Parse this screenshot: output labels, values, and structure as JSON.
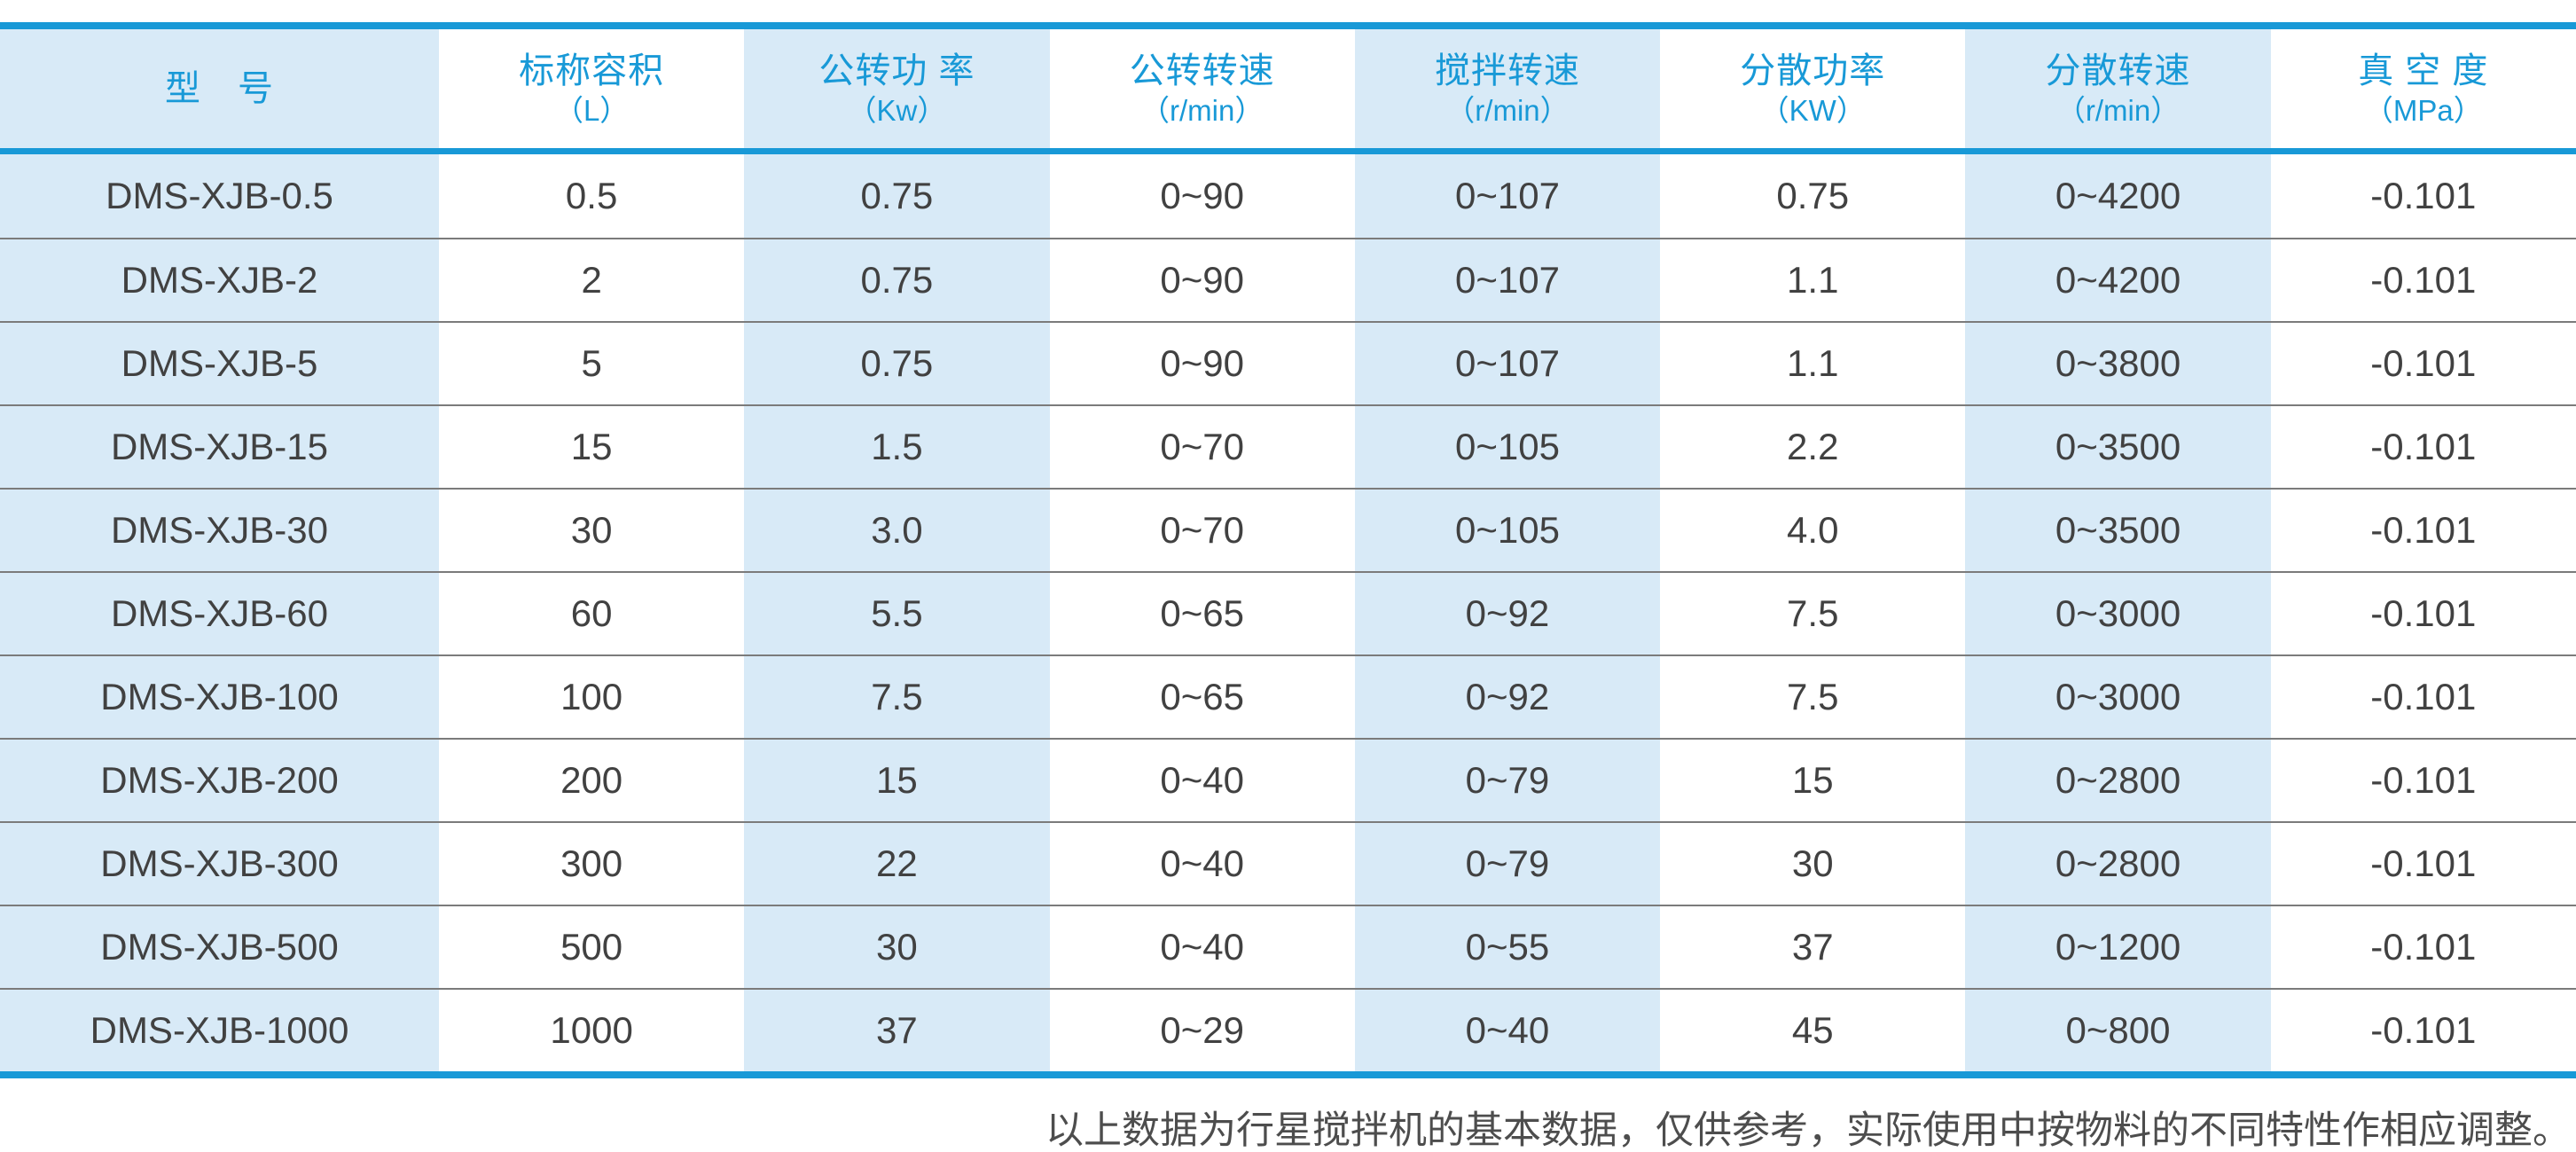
{
  "colors": {
    "accent_blue": "#1899d7",
    "light_blue_cell": "#d8eaf7",
    "body_text": "#414141",
    "row_separator": "#7b7b7b"
  },
  "table": {
    "headers": [
      {
        "title": "型　号",
        "unit": ""
      },
      {
        "title": "标称容积",
        "unit": "（L）"
      },
      {
        "title": "公转功 率",
        "unit": "（Kw）"
      },
      {
        "title": "公转转速",
        "unit": "（r/min）"
      },
      {
        "title": "搅拌转速",
        "unit": "（r/min）"
      },
      {
        "title": "分散功率",
        "unit": "（KW）"
      },
      {
        "title": "分散转速",
        "unit": "（r/min）"
      },
      {
        "title": "真 空 度",
        "unit": "（MPa）"
      }
    ],
    "rows": [
      [
        "DMS-XJB-0.5",
        "0.5",
        "0.75",
        "0~90",
        "0~107",
        "0.75",
        "0~4200",
        "-0.101"
      ],
      [
        "DMS-XJB-2",
        "2",
        "0.75",
        "0~90",
        "0~107",
        "1.1",
        "0~4200",
        "-0.101"
      ],
      [
        "DMS-XJB-5",
        "5",
        "0.75",
        "0~90",
        "0~107",
        "1.1",
        "0~3800",
        "-0.101"
      ],
      [
        "DMS-XJB-15",
        "15",
        "1.5",
        "0~70",
        "0~105",
        "2.2",
        "0~3500",
        "-0.101"
      ],
      [
        "DMS-XJB-30",
        "30",
        "3.0",
        "0~70",
        "0~105",
        "4.0",
        "0~3500",
        "-0.101"
      ],
      [
        "DMS-XJB-60",
        "60",
        "5.5",
        "0~65",
        "0~92",
        "7.5",
        "0~3000",
        "-0.101"
      ],
      [
        "DMS-XJB-100",
        "100",
        "7.5",
        "0~65",
        "0~92",
        "7.5",
        "0~3000",
        "-0.101"
      ],
      [
        "DMS-XJB-200",
        "200",
        "15",
        "0~40",
        "0~79",
        "15",
        "0~2800",
        "-0.101"
      ],
      [
        "DMS-XJB-300",
        "300",
        "22",
        "0~40",
        "0~79",
        "30",
        "0~2800",
        "-0.101"
      ],
      [
        "DMS-XJB-500",
        "500",
        "30",
        "0~40",
        "0~55",
        "37",
        "0~1200",
        "-0.101"
      ],
      [
        "DMS-XJB-1000",
        "1000",
        "37",
        "0~29",
        "0~40",
        "45",
        "0~800",
        "-0.101"
      ]
    ]
  },
  "footer": {
    "note": "以上数据为行星搅拌机的基本数据，仅供参考，实际使用中按物料的不同特性作相应调整。"
  }
}
